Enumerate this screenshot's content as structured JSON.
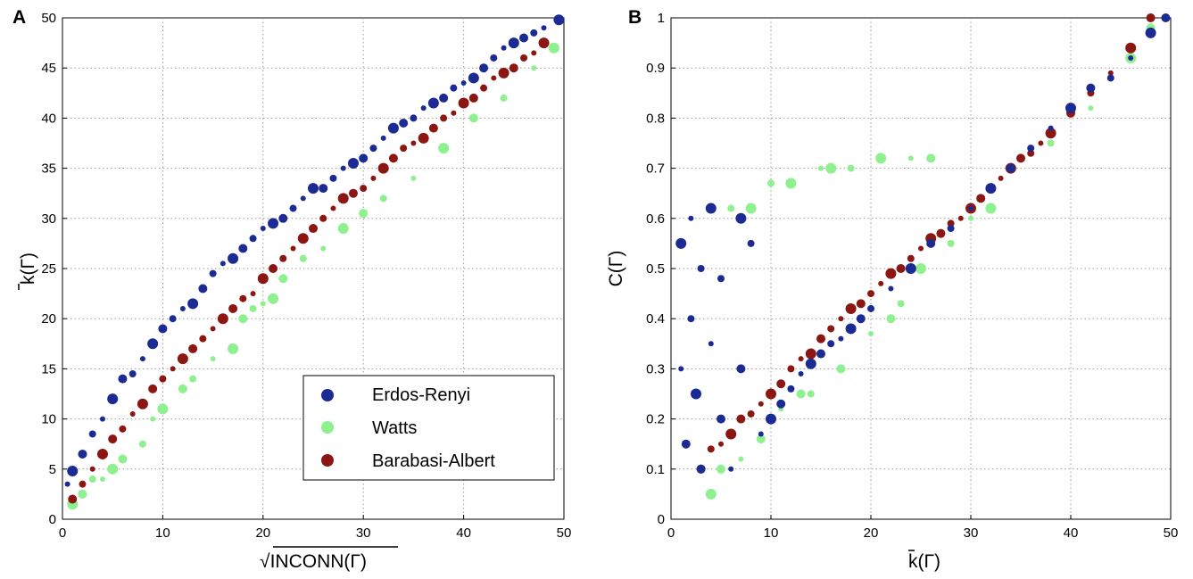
{
  "chart_data": [
    {
      "panel": "A",
      "type": "scatter",
      "xlabel": "INCONN(Γ)",
      "xlabel_prefix": "√",
      "ylabel": "k(Γ)",
      "xlim": [
        0,
        50
      ],
      "ylim": [
        0,
        50
      ],
      "xticks": [
        0,
        10,
        20,
        30,
        40,
        50
      ],
      "yticks": [
        0,
        5,
        10,
        15,
        20,
        25,
        30,
        35,
        40,
        45,
        50
      ],
      "grid": true,
      "legend": {
        "position": "bottom-right"
      },
      "series": [
        {
          "name": "Erdos-Renyi",
          "color": "#1c2a94",
          "x": [
            0.5,
            1,
            2,
            3,
            4,
            5,
            6,
            7,
            8,
            9,
            10,
            11,
            12,
            13,
            14,
            15,
            16,
            17,
            18,
            19,
            20,
            21,
            22,
            23,
            24,
            25,
            26,
            27,
            28,
            29,
            30,
            31,
            32,
            33,
            34,
            35,
            36,
            37,
            38,
            39,
            40,
            41,
            42,
            43,
            44,
            45,
            46,
            47,
            48,
            49.5
          ],
          "y": [
            3.5,
            4.8,
            6.5,
            8.5,
            10,
            12,
            14,
            14.5,
            16,
            17.5,
            19,
            20,
            21,
            21.5,
            23,
            24.5,
            25.5,
            26,
            27,
            28,
            29,
            29.5,
            30,
            31,
            32,
            33,
            33,
            34,
            35,
            35.5,
            36,
            37,
            38,
            39,
            39.5,
            40,
            41,
            41.5,
            42,
            43,
            43.5,
            44,
            45,
            46,
            47,
            47.5,
            48,
            48.5,
            49,
            49.8
          ]
        },
        {
          "name": "Watts",
          "color": "#8ef08e",
          "x": [
            1,
            2,
            3,
            4,
            5,
            6,
            8,
            9,
            10,
            12,
            13,
            15,
            17,
            18,
            19,
            20,
            21,
            22,
            24,
            26,
            28,
            30,
            32,
            35,
            38,
            41,
            44,
            47,
            49
          ],
          "y": [
            1.5,
            2.5,
            4,
            4,
            5,
            6,
            7.5,
            10,
            11,
            13,
            14,
            16,
            17,
            20,
            21,
            21.5,
            22,
            24,
            26,
            27,
            29,
            30.5,
            32,
            34,
            37,
            40,
            42,
            45,
            47
          ]
        },
        {
          "name": "Barabasi-Albert",
          "color": "#8b1612",
          "x": [
            1,
            2,
            3,
            4,
            5,
            6,
            7,
            8,
            9,
            10,
            11,
            12,
            13,
            14,
            15,
            16,
            17,
            18,
            19,
            20,
            21,
            22,
            23,
            24,
            25,
            26,
            27,
            28,
            29,
            30,
            31,
            32,
            33,
            34,
            35,
            36,
            37,
            38,
            39,
            40,
            41,
            42,
            43,
            44,
            45,
            46,
            47,
            48
          ],
          "y": [
            2,
            3.5,
            5,
            6.5,
            8,
            9,
            10.5,
            11.5,
            13,
            14,
            15,
            16,
            17,
            18,
            19,
            20,
            21,
            22,
            22.5,
            24,
            25,
            26,
            27,
            28,
            29,
            30,
            31,
            32,
            32.5,
            33,
            34,
            35,
            36,
            37,
            37.5,
            38,
            39,
            40,
            40.5,
            41.5,
            42,
            43,
            44,
            44.5,
            45,
            46,
            46.5,
            47.5
          ]
        }
      ]
    },
    {
      "panel": "B",
      "type": "scatter",
      "xlabel": "k(Γ)",
      "ylabel": "C(Γ)",
      "xlim": [
        0,
        50
      ],
      "ylim": [
        0,
        1
      ],
      "xticks": [
        0,
        10,
        20,
        30,
        40,
        50
      ],
      "yticks": [
        0,
        0.1,
        0.2,
        0.3,
        0.4,
        0.5,
        0.6,
        0.7,
        0.8,
        0.9,
        1
      ],
      "grid": true,
      "series": [
        {
          "name": "Erdos-Renyi",
          "color": "#1c2a94",
          "x": [
            1,
            1,
            1.5,
            2,
            2,
            2.5,
            3,
            3,
            4,
            4,
            5,
            5,
            6,
            7,
            7,
            8,
            9,
            10,
            11,
            12,
            13,
            14,
            15,
            16,
            17,
            18,
            19,
            20,
            22,
            24,
            26,
            28,
            30,
            32,
            34,
            36,
            38,
            40,
            42,
            44,
            46,
            48,
            49.5
          ],
          "y": [
            0.3,
            0.55,
            0.15,
            0.4,
            0.6,
            0.25,
            0.1,
            0.5,
            0.35,
            0.62,
            0.2,
            0.48,
            0.1,
            0.6,
            0.3,
            0.55,
            0.17,
            0.2,
            0.23,
            0.26,
            0.29,
            0.31,
            0.33,
            0.35,
            0.36,
            0.38,
            0.4,
            0.42,
            0.46,
            0.5,
            0.55,
            0.58,
            0.62,
            0.66,
            0.7,
            0.74,
            0.78,
            0.82,
            0.86,
            0.88,
            0.92,
            0.97,
            1.0
          ]
        },
        {
          "name": "Watts",
          "color": "#8ef08e",
          "x": [
            4,
            5,
            6,
            7,
            8,
            9,
            10,
            11,
            12,
            13,
            14,
            15,
            16,
            17,
            18,
            20,
            21,
            22,
            23,
            24,
            25,
            26,
            28,
            30,
            32,
            34,
            38,
            42,
            46,
            48
          ],
          "y": [
            0.05,
            0.1,
            0.62,
            0.12,
            0.62,
            0.16,
            0.67,
            0.22,
            0.67,
            0.25,
            0.25,
            0.7,
            0.7,
            0.3,
            0.7,
            0.37,
            0.72,
            0.4,
            0.43,
            0.72,
            0.5,
            0.72,
            0.55,
            0.6,
            0.62,
            0.7,
            0.75,
            0.82,
            0.92,
            0.98
          ]
        },
        {
          "name": "Barabasi-Albert",
          "color": "#8b1612",
          "x": [
            3,
            4,
            5,
            6,
            7,
            8,
            9,
            10,
            11,
            12,
            13,
            14,
            15,
            16,
            17,
            18,
            19,
            20,
            21,
            22,
            23,
            24,
            25,
            26,
            27,
            28,
            29,
            30,
            31,
            32,
            33,
            34,
            35,
            36,
            37,
            38,
            40,
            42,
            44,
            46,
            48
          ],
          "y": [
            0.1,
            0.14,
            0.15,
            0.17,
            0.2,
            0.21,
            0.23,
            0.25,
            0.27,
            0.3,
            0.32,
            0.33,
            0.36,
            0.38,
            0.4,
            0.42,
            0.43,
            0.45,
            0.47,
            0.49,
            0.5,
            0.52,
            0.54,
            0.56,
            0.57,
            0.59,
            0.6,
            0.62,
            0.64,
            0.66,
            0.68,
            0.7,
            0.72,
            0.73,
            0.75,
            0.77,
            0.81,
            0.85,
            0.89,
            0.94,
            1.0
          ]
        }
      ]
    }
  ]
}
